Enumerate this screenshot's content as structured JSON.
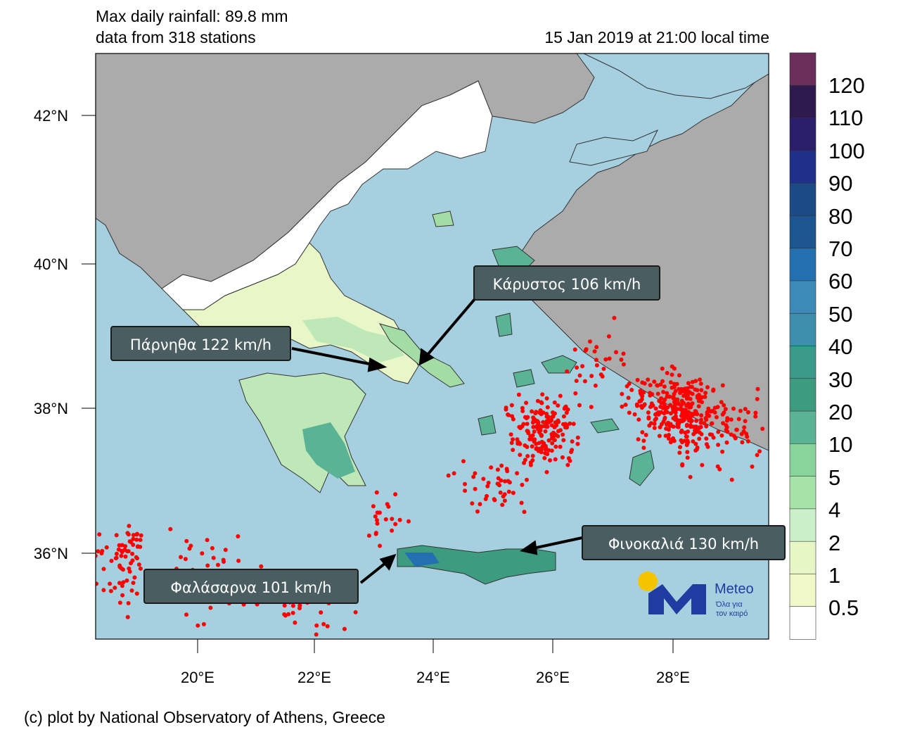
{
  "header": {
    "max_rainfall": "Max daily rainfall: 89.8 mm",
    "stations": "data from 318 stations",
    "timestamp": "15 Jan 2019 at 21:00 local time"
  },
  "axes": {
    "lat_labels": [
      "42°N",
      "40°N",
      "38°N",
      "36°N"
    ],
    "lon_labels": [
      "20°E",
      "22°E",
      "24°E",
      "26°E",
      "28°E"
    ]
  },
  "colorbar": {
    "labels": [
      "120",
      "110",
      "100",
      "90",
      "80",
      "70",
      "60",
      "50",
      "40",
      "30",
      "20",
      "10",
      "5",
      "4",
      "2",
      "1",
      "0.5"
    ],
    "colors": [
      "#6b2e5a",
      "#2e1a4f",
      "#2b1f6b",
      "#1f2f8a",
      "#1c4a86",
      "#1d5590",
      "#2370b0",
      "#3b8ab8",
      "#3d8fac",
      "#3a9a8a",
      "#3d9c7f",
      "#5ab394",
      "#88d49a",
      "#a6e3a8",
      "#cbefc8",
      "#e6f6c4",
      "#f0f8c8",
      "#ffffff"
    ]
  },
  "annotations": [
    {
      "label": "Κάρυστος 106 km/h"
    },
    {
      "label": "Πάρνηθα 122 km/h"
    },
    {
      "label": "Φινοκαλιά 130 km/h"
    },
    {
      "label": "Φαλάσαρνα 101 km/h"
    }
  ],
  "logo": {
    "brand": "Meteo",
    "tagline_1": "Όλα για",
    "tagline_2": "τον καιρό"
  },
  "map_colors": {
    "sea": "#a6d0df",
    "land_foreign": "#ababab",
    "land_dry": "#ffffff",
    "lightning": "#ff0000"
  },
  "footer": "(c) plot by National Observatory of Athens, Greece"
}
